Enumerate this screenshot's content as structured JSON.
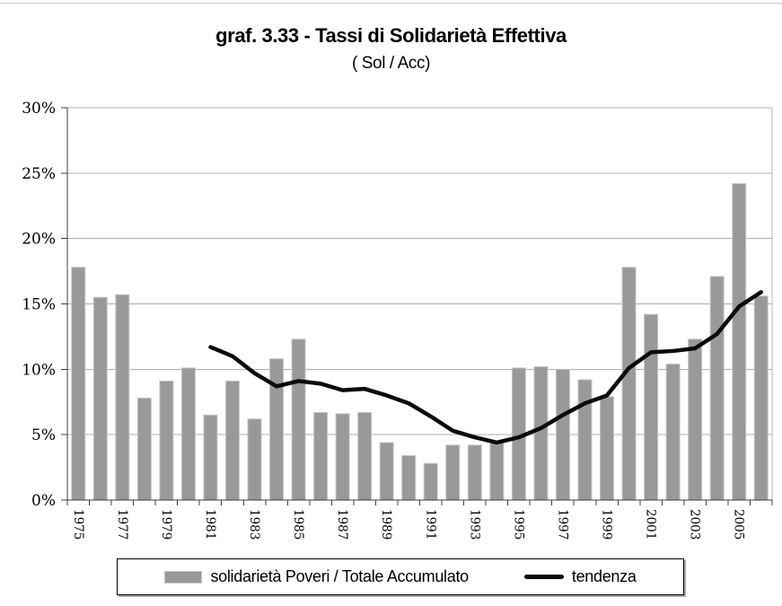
{
  "chart_data": {
    "type": "bar",
    "title": "graf. 3.33 - Tassi di Solidarietà Effettiva",
    "subtitle": "( Sol / Acc)",
    "categories": [
      "1975",
      "1976",
      "1977",
      "1978",
      "1979",
      "1980",
      "1981",
      "1982",
      "1983",
      "1984",
      "1985",
      "1986",
      "1987",
      "1988",
      "1989",
      "1990",
      "1991",
      "1992",
      "1993",
      "1994",
      "1995",
      "1996",
      "1997",
      "1998",
      "1999",
      "2000",
      "2001",
      "2002",
      "2003",
      "2004",
      "2005",
      "2006"
    ],
    "x_tick_labels": [
      "1975",
      "1977",
      "1979",
      "1981",
      "1983",
      "1985",
      "1987",
      "1989",
      "1991",
      "1993",
      "1995",
      "1997",
      "1999",
      "2001",
      "2003",
      "2005"
    ],
    "series": [
      {
        "name": "solidarietà Poveri / Totale Accumulato",
        "type": "bar",
        "color": "#999999",
        "border_color": "#c6c6c6",
        "values": [
          17.8,
          15.5,
          15.7,
          7.8,
          9.1,
          10.1,
          6.5,
          9.1,
          6.2,
          10.8,
          12.3,
          6.7,
          6.6,
          6.7,
          4.4,
          3.4,
          2.8,
          4.2,
          4.2,
          4.4,
          10.1,
          10.2,
          10.0,
          9.2,
          7.9,
          17.8,
          14.2,
          10.4,
          12.3,
          17.1,
          24.2,
          15.6
        ]
      },
      {
        "name": "tendenza",
        "type": "line",
        "color": "#0a0a0a",
        "values": [
          null,
          null,
          null,
          null,
          null,
          null,
          11.7,
          11.0,
          9.7,
          8.7,
          9.1,
          8.9,
          8.4,
          8.5,
          8.0,
          7.4,
          6.4,
          5.3,
          4.8,
          4.4,
          4.8,
          5.5,
          6.5,
          7.4,
          8.0,
          10.1,
          11.3,
          11.4,
          11.6,
          12.7,
          14.8,
          15.9
        ]
      }
    ],
    "ylim": [
      0,
      30
    ],
    "y_ticks": [
      {
        "label": "30%",
        "value": 30
      },
      {
        "label": "25%",
        "value": 25
      },
      {
        "label": "20%",
        "value": 20
      },
      {
        "label": "15%",
        "value": 15
      },
      {
        "label": "10%",
        "value": 10
      },
      {
        "label": "5%",
        "value": 5
      },
      {
        "label": "0%",
        "value": 0
      }
    ],
    "grid": true,
    "legend_position": "bottom",
    "colors": {
      "grid": "#adadad",
      "axis": "#3f3f3f",
      "plot_right_border": "#b5b5b5"
    }
  }
}
